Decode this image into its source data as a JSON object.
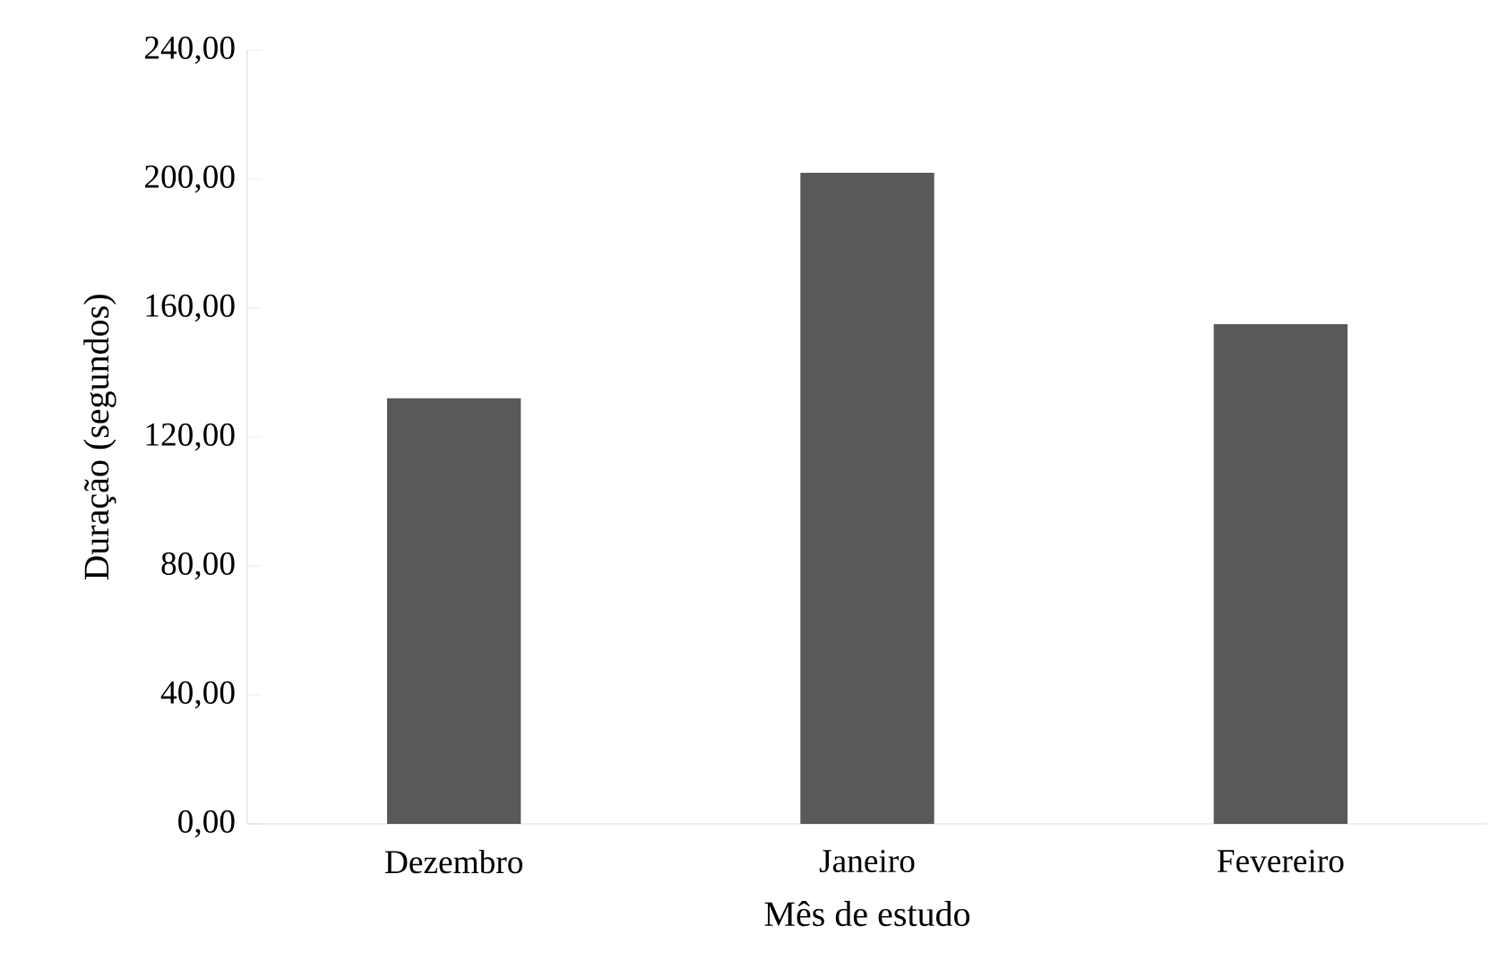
{
  "chart_data": {
    "type": "bar",
    "xlabel": "Mês de estudo",
    "ylabel": "Duração (segundos)",
    "categories": [
      "Dezembro",
      "Janeiro",
      "Fevereiro"
    ],
    "values": [
      132,
      202,
      155
    ],
    "color": "#595959",
    "ylim": [
      0,
      240
    ],
    "yticks": [
      {
        "value": 0,
        "label": "0,00"
      },
      {
        "value": 40,
        "label": "40,00"
      },
      {
        "value": 80,
        "label": "80,00"
      },
      {
        "value": 120,
        "label": "120,00"
      },
      {
        "value": 160,
        "label": "160,00"
      },
      {
        "value": 200,
        "label": "200,00"
      },
      {
        "value": 240,
        "label": "240,00"
      }
    ],
    "grid": false
  }
}
